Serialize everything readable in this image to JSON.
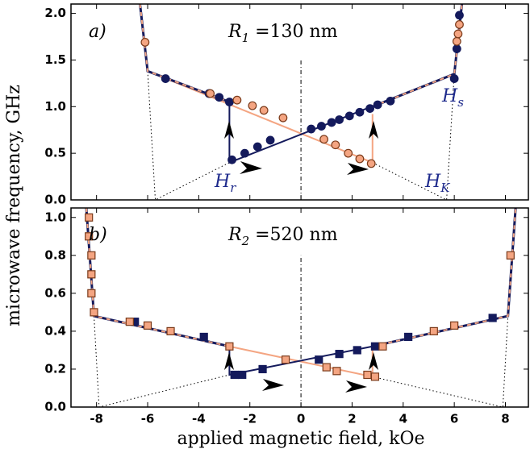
{
  "chart_data": [
    {
      "type": "scatter",
      "ylabel": "microwave frequency, GHz",
      "xlim": [
        -9,
        8.9
      ],
      "ylim": [
        0,
        2.1
      ],
      "xticks": [
        -8,
        -6,
        -4,
        -2,
        0,
        2,
        4,
        6,
        8
      ],
      "xtick_labels": false,
      "yticks": [
        {
          "value": 0,
          "label": "0.0"
        },
        {
          "value": 0.5,
          "label": "0.5"
        },
        {
          "value": 1,
          "label": "1.0"
        },
        {
          "value": 1.5,
          "label": "1.5"
        },
        {
          "value": 2,
          "label": "2.0"
        }
      ],
      "annotations": [
        {
          "text": "a)"
        },
        {
          "text": "R",
          "sub": "1",
          "after": " =130 nm"
        },
        {
          "text": "H",
          "sub": "r"
        },
        {
          "text": "H",
          "sub": "K"
        },
        {
          "text": "H",
          "sub": "s"
        }
      ],
      "series": [
        {
          "marker": "circle",
          "color": "#141a5c",
          "edge": "#141a5c",
          "x": [
            -5.3,
            -3.6,
            -3.2,
            -2.8,
            -2.7,
            -2.2,
            -1.7,
            -1.2,
            0.4,
            0.8,
            1.2,
            1.5,
            1.9,
            2.3,
            2.7,
            3.0,
            3.5,
            6.0,
            6.1,
            6.2
          ],
          "values": [
            1.3,
            1.14,
            1.1,
            1.05,
            0.43,
            0.5,
            0.57,
            0.64,
            0.76,
            0.79,
            0.83,
            0.86,
            0.9,
            0.94,
            0.98,
            1.02,
            1.06,
            1.3,
            1.62,
            1.98
          ]
        },
        {
          "marker": "circle",
          "color": "#f4a582",
          "edge": "#7a3a1a",
          "x": [
            -6.1,
            -3.55,
            -2.5,
            -1.9,
            -1.45,
            -0.7,
            0.9,
            1.35,
            1.85,
            2.3,
            2.75,
            6.1,
            6.15,
            6.2
          ],
          "values": [
            1.69,
            1.14,
            1.07,
            1.01,
            0.96,
            0.88,
            0.65,
            0.59,
            0.5,
            0.44,
            0.39,
            1.7,
            1.78,
            1.88
          ]
        }
      ],
      "lines": [
        {
          "style": "dashdot",
          "color": "#000000",
          "x": [
            0,
            0
          ],
          "y": [
            0,
            1.5
          ]
        },
        {
          "style": "dotted",
          "color": "#000000",
          "x": [
            -6.0,
            -5.7,
            -2.8
          ],
          "y": [
            1.38,
            0,
            0.4
          ]
        },
        {
          "style": "dotted",
          "color": "#000000",
          "x": [
            2.8,
            5.7,
            6.0
          ],
          "y": [
            0.4,
            0,
            1.35
          ]
        },
        {
          "style": "solid",
          "color": "#f4a582",
          "x": [
            -6.0,
            2.8,
            2.8
          ],
          "y": [
            1.38,
            0.4,
            0.92
          ]
        },
        {
          "style": "solid",
          "color": "#141a5c",
          "x": [
            -2.8,
            -2.8,
            6.0
          ],
          "y": [
            1.05,
            0.4,
            1.35
          ]
        },
        {
          "style": "dashed",
          "color": "#141a5c",
          "dash_color": "#f4a582",
          "x": [
            -6.3,
            -6.0,
            -2.8
          ],
          "y": [
            2.1,
            1.38,
            1.05
          ]
        },
        {
          "style": "dashed",
          "color": "#141a5c",
          "dash_color": "#f4a582",
          "x": [
            2.8,
            6.0,
            6.3
          ],
          "y": [
            1.0,
            1.35,
            2.1
          ]
        }
      ]
    },
    {
      "type": "scatter",
      "xlabel": "applied magnetic field, kOe",
      "xlim": [
        -9,
        8.9
      ],
      "ylim": [
        0,
        1.05
      ],
      "xticks": [
        -8,
        -6,
        -4,
        -2,
        0,
        2,
        4,
        6,
        8
      ],
      "xtick_labels": true,
      "yticks": [
        {
          "value": 0,
          "label": "0.0"
        },
        {
          "value": 0.2,
          "label": "0.2"
        },
        {
          "value": 0.4,
          "label": "0.4"
        },
        {
          "value": 0.6,
          "label": "0.6"
        },
        {
          "value": 0.8,
          "label": "0.8"
        },
        {
          "value": 1,
          "label": "1.0"
        }
      ],
      "annotations": [
        {
          "text": "b)"
        },
        {
          "text": "R",
          "sub": "2",
          "after": " =520 nm"
        }
      ],
      "series": [
        {
          "marker": "square",
          "color": "#141a5c",
          "edge": "#141a5c",
          "x": [
            -6.5,
            -3.8,
            -2.6,
            -2.3,
            -1.5,
            0.7,
            1.5,
            2.2,
            2.9,
            4.2,
            7.5
          ],
          "values": [
            0.45,
            0.37,
            0.17,
            0.17,
            0.2,
            0.25,
            0.28,
            0.3,
            0.32,
            0.37,
            0.47
          ]
        },
        {
          "marker": "square",
          "color": "#f4a582",
          "edge": "#7a3a1a",
          "x": [
            -8.3,
            -8.3,
            -8.2,
            -8.2,
            -8.2,
            -8.1,
            -6.7,
            -6.0,
            -5.1,
            -2.8,
            -0.6,
            1.0,
            1.4,
            2.6,
            2.9,
            3.2,
            5.2,
            6.0,
            8.2
          ],
          "values": [
            1.0,
            0.9,
            0.8,
            0.7,
            0.6,
            0.5,
            0.45,
            0.43,
            0.4,
            0.32,
            0.25,
            0.21,
            0.19,
            0.17,
            0.16,
            0.32,
            0.4,
            0.43,
            0.8
          ]
        }
      ],
      "lines": [
        {
          "style": "dashdot",
          "color": "#000000",
          "x": [
            0,
            0
          ],
          "y": [
            0,
            0.8
          ]
        },
        {
          "style": "dotted",
          "color": "#000000",
          "x": [
            -8.1,
            -7.9,
            -2.8
          ],
          "y": [
            0.48,
            0,
            0.17
          ]
        },
        {
          "style": "dotted",
          "color": "#000000",
          "x": [
            2.8,
            7.9,
            8.1
          ],
          "y": [
            0.16,
            0,
            0.48
          ]
        },
        {
          "style": "solid",
          "color": "#f4a582",
          "x": [
            -2.8,
            2.8,
            2.8
          ],
          "y": [
            0.32,
            0.16,
            0.32
          ]
        },
        {
          "style": "solid",
          "color": "#141a5c",
          "x": [
            -2.8,
            -2.8,
            2.8
          ],
          "y": [
            0.32,
            0.17,
            0.32
          ]
        },
        {
          "style": "dashed",
          "color": "#141a5c",
          "dash_color": "#f4a582",
          "x": [
            -8.4,
            -8.1,
            -2.8
          ],
          "y": [
            1.05,
            0.48,
            0.32
          ]
        },
        {
          "style": "dashed",
          "color": "#141a5c",
          "dash_color": "#f4a582",
          "x": [
            2.8,
            8.1,
            8.4
          ],
          "y": [
            0.32,
            0.48,
            1.05
          ]
        }
      ]
    }
  ]
}
